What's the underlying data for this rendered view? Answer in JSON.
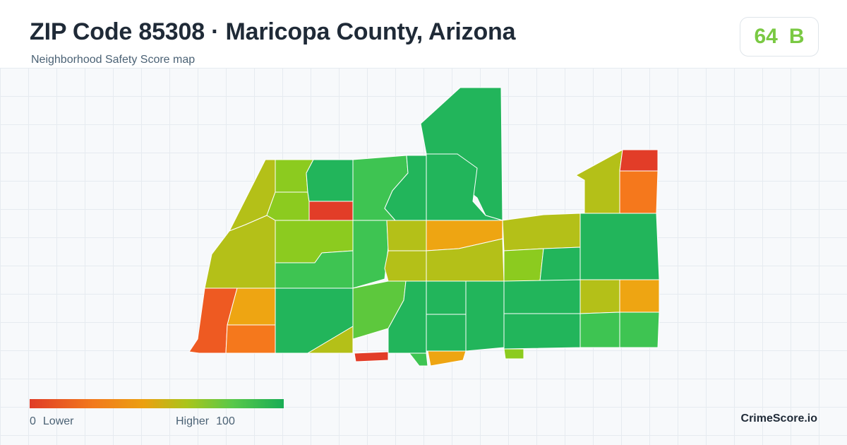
{
  "header": {
    "title": "ZIP Code 85308 · Maricopa County, Arizona",
    "subtitle": "Neighborhood Safety Score map"
  },
  "score": {
    "value": "64",
    "grade": "B",
    "color": "#7ac943"
  },
  "legend": {
    "min": "0",
    "min_label": "Lower",
    "max_label": "Higher",
    "max": "100",
    "colors": [
      "#e03c26",
      "#f27a1c",
      "#eba010",
      "#a9c51b",
      "#58c84a",
      "#19ad55"
    ]
  },
  "brand": "CrimeScore.io",
  "map": {
    "palette": {
      "red": "#e23d28",
      "red_orange": "#ee5a22",
      "orange": "#f5781c",
      "amber": "#eea512",
      "yellow_green": "#b4c018",
      "lime": "#8ccb1f",
      "light_green": "#5dc83d",
      "mid_green": "#3ec452",
      "green": "#22b55b"
    }
  }
}
